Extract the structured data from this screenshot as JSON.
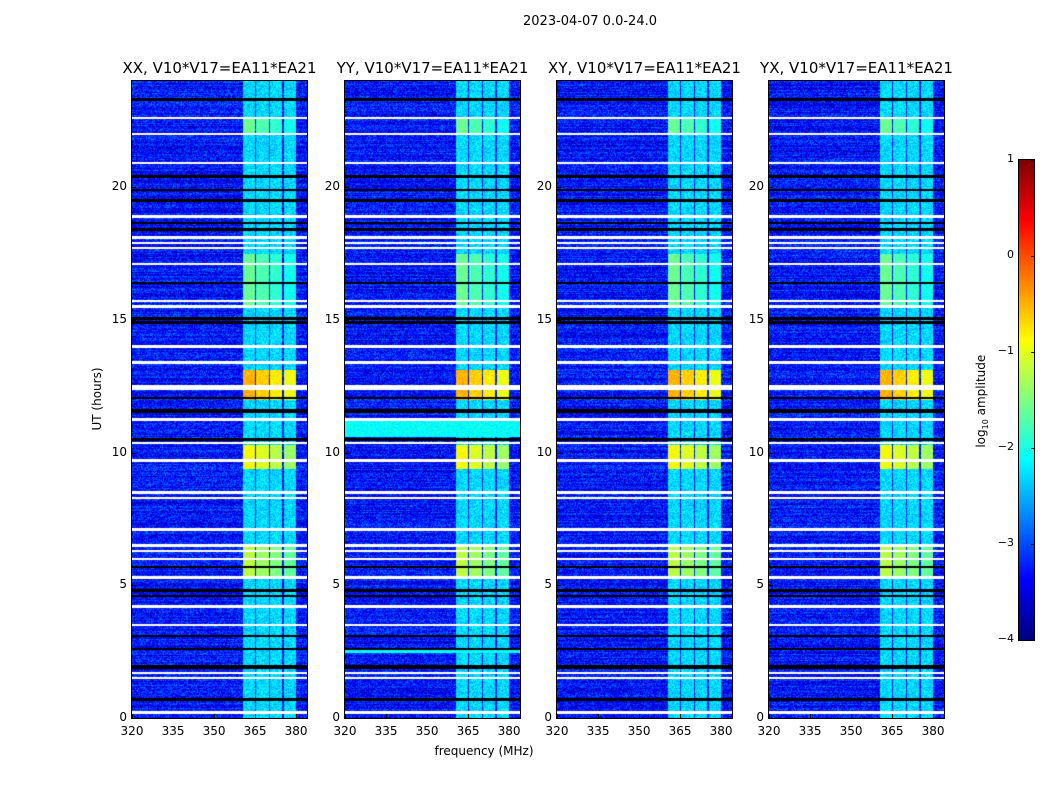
{
  "chart_data": {
    "type": "heatmap",
    "title": "2023-04-07 0.0-24.0",
    "xlabel": "frequency (MHz)",
    "ylabel": "UT (hours)",
    "xlim": [
      320,
      384
    ],
    "ylim": [
      0,
      24
    ],
    "xticks": [
      320,
      335,
      350,
      365,
      380
    ],
    "yticks": [
      0,
      5,
      10,
      15,
      20
    ],
    "colorbar": {
      "label_main": "log",
      "label_sub": "10",
      "label_rest": " amplitude",
      "clim": [
        -4,
        1
      ],
      "ticks": [
        1,
        0,
        -1,
        -2,
        -3,
        -4
      ],
      "tick_labels": [
        "1",
        "0",
        "−1",
        "−2",
        "−3",
        "−4"
      ],
      "colormap": "jet"
    },
    "panels": [
      {
        "title": "XX, V10*V17=EA11*EA21",
        "variant": "XX"
      },
      {
        "title": "YY, V10*V17=EA11*EA21",
        "variant": "YY"
      },
      {
        "title": "XY, V10*V17=EA11*EA21",
        "variant": "XY"
      },
      {
        "title": "YX, V10*V17=EA11*EA21",
        "variant": "YX"
      }
    ],
    "background_level": -3.3,
    "rfi_bands_mhz": [
      [
        360.5,
        365
      ],
      [
        365.5,
        370
      ],
      [
        370.5,
        375
      ],
      [
        375.5,
        380
      ]
    ],
    "rfi_band_level": -2.3,
    "bright_intervals": [
      {
        "hours": [
          12.0,
          13.1
        ],
        "level": -0.5
      },
      {
        "hours": [
          9.4,
          10.3
        ],
        "level": -0.9
      },
      {
        "hours": [
          5.3,
          6.5
        ],
        "level": -1.2
      },
      {
        "hours": [
          15.5,
          17.5
        ],
        "level": -1.6
      },
      {
        "hours": [
          22.0,
          22.6
        ],
        "level": -1.6
      }
    ],
    "flagged_hours_white": [
      22.6,
      22.0,
      20.9,
      18.9,
      18.1,
      17.9,
      17.7,
      17.1,
      15.7,
      15.5,
      14.0,
      13.4,
      12.5,
      12.45,
      12.4,
      11.25,
      10.35,
      9.7,
      8.5,
      8.3,
      7.1,
      6.5,
      6.3,
      6.0,
      5.3,
      4.2,
      3.5,
      1.7,
      1.5,
      0.2
    ],
    "zero_hours_black": [
      23.3,
      20.4,
      19.9,
      19.5,
      18.65,
      18.4,
      16.4,
      15.05,
      14.9,
      12.05,
      11.6,
      11.55,
      10.5,
      5.7,
      4.8,
      4.6,
      3.1,
      2.6,
      1.95,
      1.9,
      0.7
    ]
  }
}
